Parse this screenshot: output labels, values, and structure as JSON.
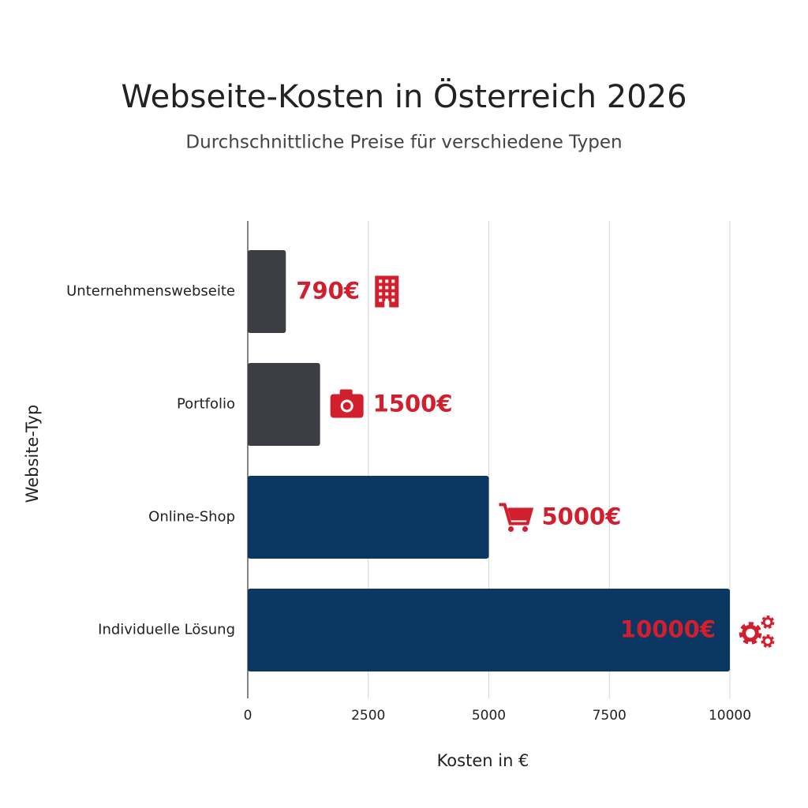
{
  "chart_data": {
    "type": "bar",
    "orientation": "horizontal",
    "title": "Webseite-Kosten in Österreich 2026",
    "subtitle": "Durchschnittliche Preise für verschiedene Typen",
    "categories": [
      "Unternehmenswebseite",
      "Portfolio",
      "Online-Shop",
      "Individuelle Lösung"
    ],
    "values": [
      790,
      1500,
      5000,
      10000
    ],
    "value_labels": [
      "790€",
      "1500€",
      "5000€",
      "10000€"
    ],
    "colors": [
      "#3b3e42",
      "#3b3e42",
      "#0b3763",
      "#0b3763"
    ],
    "label_color": "#d21f2e",
    "xlim": [
      0,
      10000
    ],
    "xticks": [
      0,
      2500,
      5000,
      7500,
      10000
    ],
    "x_label": "Kosten in €",
    "y_label": "Website-Typ",
    "grid": true
  }
}
